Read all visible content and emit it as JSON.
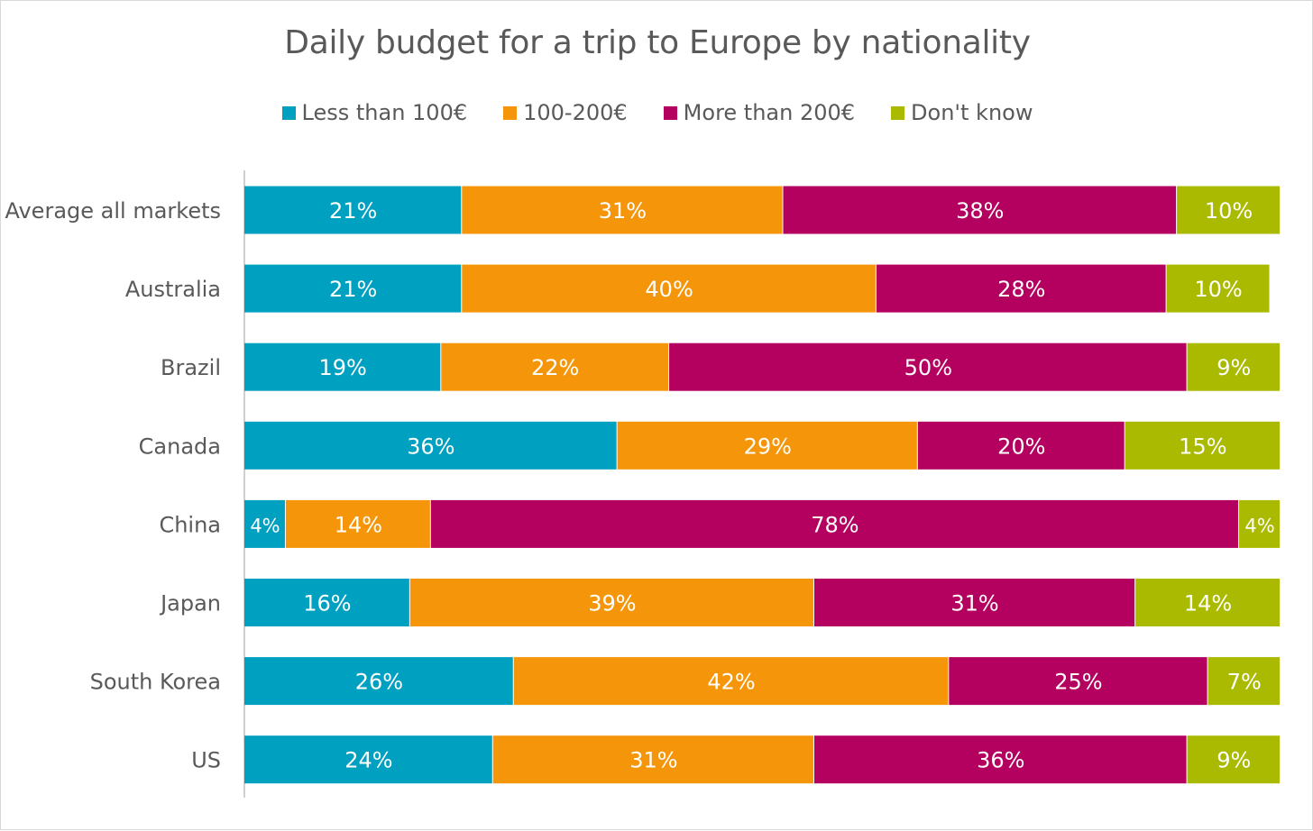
{
  "chart_data": {
    "type": "bar",
    "orientation": "horizontal",
    "stacked": true,
    "title": "Daily budget for a trip to Europe by nationality",
    "legend_position": "top",
    "grid": false,
    "value_suffix": "%",
    "categories": [
      "Average all markets",
      "Australia",
      "Brazil",
      "Canada",
      "China",
      "Japan",
      "South Korea",
      "US"
    ],
    "series": [
      {
        "name": "Less than 100€",
        "color": "#00A0C0",
        "values": [
          21,
          21,
          19,
          36,
          4,
          16,
          26,
          24
        ]
      },
      {
        "name": "100-200€",
        "color": "#F5960A",
        "values": [
          31,
          40,
          22,
          29,
          14,
          39,
          42,
          31
        ]
      },
      {
        "name": "More than 200€",
        "color": "#B4005F",
        "values": [
          38,
          28,
          50,
          20,
          78,
          31,
          25,
          36
        ]
      },
      {
        "name": "Don't know",
        "color": "#AABA00",
        "values": [
          10,
          10,
          9,
          15,
          4,
          14,
          7,
          9
        ]
      }
    ]
  }
}
